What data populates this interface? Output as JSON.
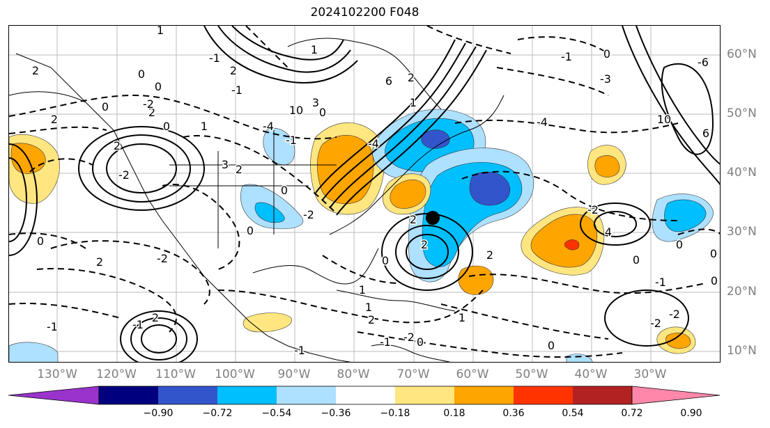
{
  "title": "2024102200 F048",
  "lon_labels": [
    "130°W",
    "120°W",
    "110°W",
    "100°W",
    "90°W",
    "80°W",
    "70°W",
    "60°W",
    "50°W",
    "40°W",
    "30°W"
  ],
  "lat_labels": [
    "60°N",
    "50°N",
    "40°N",
    "30°N",
    "20°N",
    "10°N"
  ],
  "contour_labels": [
    "1",
    "1",
    "2",
    "0",
    "-1",
    "0",
    "2",
    "2",
    "0",
    "2",
    "0",
    "3",
    "6",
    "2",
    "-1",
    "-3",
    "0",
    "-2",
    "-4",
    "0",
    "1",
    "-1",
    "-4",
    "10",
    "6",
    "10",
    "-6",
    "2",
    "-2",
    "2",
    "3",
    "-1",
    "-4",
    "1",
    "2",
    "-2",
    "4",
    "2",
    "0",
    "-2",
    "0",
    "1",
    "0",
    "2",
    "2",
    "-2",
    "2",
    "1",
    "-1",
    "-2",
    "0",
    "-1",
    "2",
    "1",
    "0",
    "-2",
    "0",
    "-2",
    "-1",
    "0",
    "0",
    "0",
    "-1",
    "-1",
    "0"
  ],
  "colorbar": {
    "tick_labels": [
      "−0.90",
      "−0.72",
      "−0.54",
      "−0.36",
      "−0.18",
      "0.18",
      "0.36",
      "0.54",
      "0.72",
      "0.90"
    ],
    "colors": [
      "#9933cc",
      "#00007f",
      "#3355cc",
      "#00bfff",
      "#aee0ff",
      "#ffffff",
      "#ffe680",
      "#ffa500",
      "#ff3300",
      "#b22222",
      "#ff88aa"
    ]
  },
  "marker": "storm-center-dot"
}
